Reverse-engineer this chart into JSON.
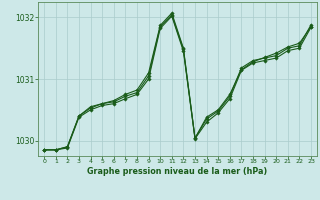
{
  "title": "Graphe pression niveau de la mer (hPa)",
  "background_color": "#cde8e8",
  "grid_color": "#aacccc",
  "line_color": "#1a5c1a",
  "marker_color": "#1a5c1a",
  "xlabel_color": "#1a5c1a",
  "spine_color": "#5a8a5a",
  "xlim": [
    -0.5,
    23.5
  ],
  "ylim": [
    1029.75,
    1032.25
  ],
  "yticks": [
    1030,
    1031,
    1032
  ],
  "xticks": [
    0,
    1,
    2,
    3,
    4,
    5,
    6,
    7,
    8,
    9,
    10,
    11,
    12,
    13,
    14,
    15,
    16,
    17,
    18,
    19,
    20,
    21,
    22,
    23
  ],
  "series": [
    [
      1029.85,
      1029.85,
      1029.9,
      1030.4,
      1030.55,
      1030.6,
      1030.65,
      1030.75,
      1030.82,
      1031.1,
      1031.87,
      1032.07,
      1031.5,
      1030.04,
      1030.38,
      1030.5,
      1030.75,
      1031.15,
      1031.28,
      1031.35,
      1031.42,
      1031.52,
      1031.58,
      1031.85
    ],
    [
      1029.85,
      1029.85,
      1029.9,
      1030.4,
      1030.53,
      1030.6,
      1030.63,
      1030.72,
      1030.78,
      1031.05,
      1031.85,
      1032.04,
      1031.48,
      1030.04,
      1030.35,
      1030.48,
      1030.72,
      1031.18,
      1031.3,
      1031.34,
      1031.38,
      1031.5,
      1031.54,
      1031.88
    ],
    [
      1029.85,
      1029.85,
      1029.88,
      1030.38,
      1030.5,
      1030.57,
      1030.6,
      1030.68,
      1030.75,
      1031.0,
      1031.82,
      1032.02,
      1031.45,
      1030.03,
      1030.3,
      1030.45,
      1030.68,
      1031.14,
      1031.26,
      1031.3,
      1031.34,
      1031.46,
      1031.5,
      1031.84
    ]
  ],
  "figsize": [
    3.2,
    2.0
  ],
  "dpi": 100
}
